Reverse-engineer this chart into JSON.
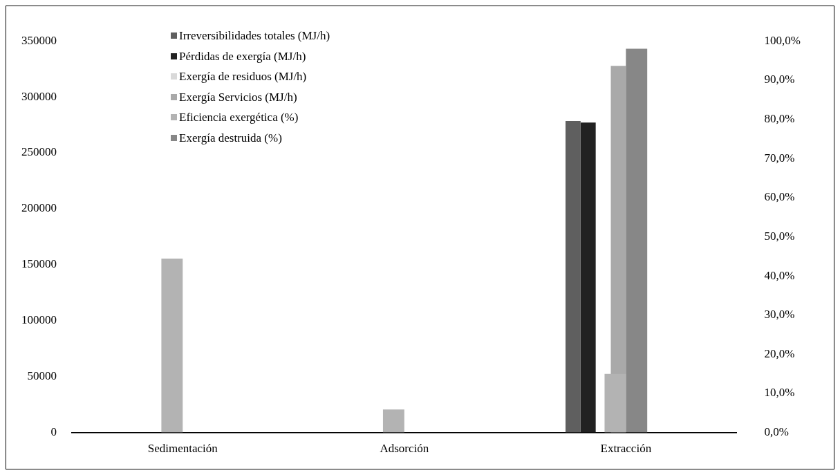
{
  "chart_data": {
    "type": "bar",
    "categories": [
      "Sedimentación",
      "Adsorción",
      "Extracción"
    ],
    "series": [
      {
        "name": "Irreversibilidades totales (MJ/h)",
        "color": "#5f5f5f",
        "values": [
          0,
          0,
          278500
        ]
      },
      {
        "name": "Pérdidas de exergía (MJ/h)",
        "color": "#222222",
        "values": [
          0,
          0,
          277000
        ]
      },
      {
        "name": "Exergía de residuos (MJ/h)",
        "color": "#d9d9d9",
        "values": [
          0,
          0,
          null
        ]
      },
      {
        "name": "Exergía Servicios (MJ/h)",
        "color": "#a9a9a9",
        "values": [
          0,
          0,
          327700
        ]
      },
      {
        "name": "Eficiencia exergética (%)",
        "color": "#b3b3b3",
        "axis": "y2",
        "values": [
          44.4,
          5.9,
          15.0
        ]
      },
      {
        "name": "Exergía destruida (%)",
        "color": "#878787",
        "axis": "y2",
        "values": [
          0,
          0,
          98.0
        ]
      }
    ],
    "ylim": [
      0,
      350000
    ],
    "yticks": [
      0,
      50000,
      100000,
      150000,
      200000,
      250000,
      300000,
      350000
    ],
    "y2lim": [
      0,
      100
    ],
    "y2ticks": [
      {
        "value": 0,
        "label": "0,0%"
      },
      {
        "value": 10,
        "label": "10,0%"
      },
      {
        "value": 20,
        "label": "20,0%"
      },
      {
        "value": 30,
        "label": "30,0%"
      },
      {
        "value": 40,
        "label": "40,0%"
      },
      {
        "value": 50,
        "label": "50,0%"
      },
      {
        "value": 60,
        "label": "60,0%"
      },
      {
        "value": 70,
        "label": "70,0%"
      },
      {
        "value": 80,
        "label": "80,0%"
      },
      {
        "value": 90,
        "label": "90,0%"
      },
      {
        "value": 100,
        "label": "100,0%"
      }
    ],
    "grid": false,
    "legend": "top left"
  }
}
